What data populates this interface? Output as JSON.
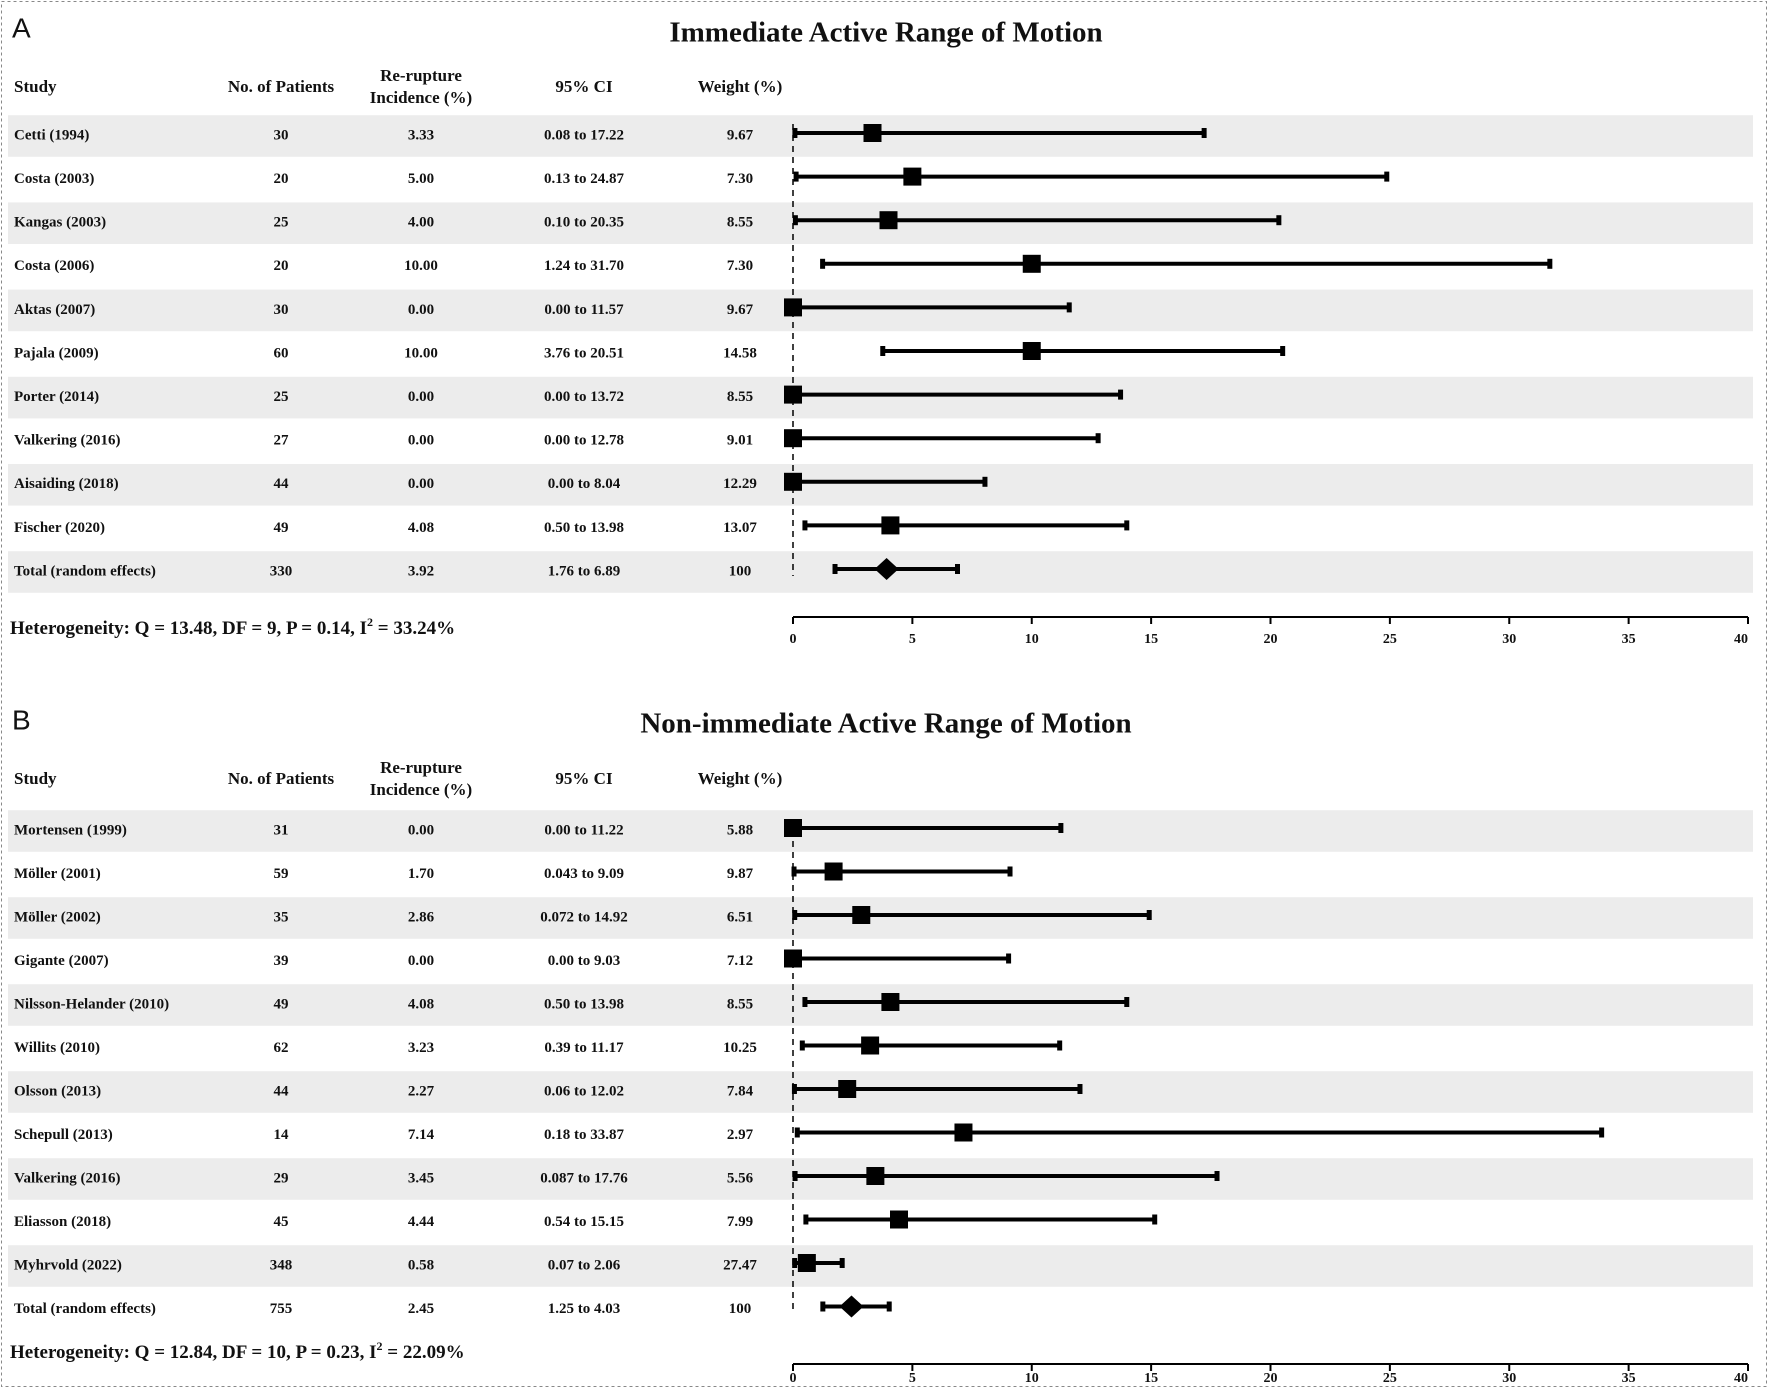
{
  "chart_data": [
    {
      "type": "forest",
      "panel": "A",
      "title": "Immediate Active Range of Motion",
      "columns": [
        "Study",
        "No. of Patients",
        [
          "Re-rupture",
          "Incidence (%)"
        ],
        "95% CI",
        "Weight (%)"
      ],
      "categories": [
        "Cetti (1994)",
        "Costa (2003)",
        "Kangas (2003)",
        "Costa (2006)",
        "Aktas (2007)",
        "Pajala (2009)",
        "Porter (2014)",
        "Valkering (2016)",
        "Aisaiding (2018)",
        "Fischer (2020)"
      ],
      "patients": [
        30,
        20,
        25,
        20,
        30,
        60,
        25,
        27,
        44,
        49
      ],
      "values": [
        3.33,
        5,
        4,
        10,
        0,
        10,
        0,
        0,
        0,
        4.08
      ],
      "value_labels": [
        "3.33",
        "5.00",
        "4.00",
        "10.00",
        "0.00",
        "10.00",
        "0.00",
        "0.00",
        "0.00",
        "4.08"
      ],
      "ci_low": [
        0.08,
        0.13,
        0.1,
        1.24,
        0,
        3.76,
        0,
        0,
        0,
        0.5
      ],
      "ci_high": [
        17.22,
        24.87,
        20.35,
        31.7,
        11.57,
        20.51,
        13.72,
        12.78,
        8.04,
        13.98
      ],
      "ci_labels": [
        "0.08 to 17.22",
        "0.13 to 24.87",
        "0.10 to 20.35",
        "1.24 to 31.70",
        "0.00 to 11.57",
        "3.76 to 20.51",
        "0.00 to 13.72",
        "0.00 to 12.78",
        "0.00 to 8.04",
        "0.50 to 13.98"
      ],
      "weights": [
        9.67,
        7.3,
        8.55,
        7.3,
        9.67,
        14.58,
        8.55,
        9.01,
        12.29,
        13.07
      ],
      "weight_labels": [
        "9.67",
        "7.30",
        "8.55",
        "7.30",
        "9.67",
        "14.58",
        "8.55",
        "9.01",
        "12.29",
        "13.07"
      ],
      "total": {
        "label": "Total (random effects)",
        "patients": 330,
        "value": 3.92,
        "ci_low": 1.76,
        "ci_high": 6.89,
        "ci_label": "1.76 to 6.89",
        "weight": 100
      },
      "heterogeneity": {
        "text": "Heterogeneity: Q = 13.48, DF = 9, P = 0.14, I",
        "superscript": "2",
        "suffix": " = 33.24%"
      },
      "xlim": [
        0,
        40
      ],
      "xticks": [
        0,
        5,
        10,
        15,
        20,
        25,
        30,
        35,
        40
      ],
      "reference_line": 0,
      "color": "#000000",
      "band_color": "#ececec"
    },
    {
      "type": "forest",
      "panel": "B",
      "title": "Non-immediate Active Range of Motion",
      "columns": [
        "Study",
        "No. of Patients",
        [
          "Re-rupture",
          "Incidence (%)"
        ],
        "95% CI",
        "Weight (%)"
      ],
      "categories": [
        "Mortensen (1999)",
        "Möller (2001)",
        "Möller (2002)",
        "Gigante (2007)",
        "Nilsson-Helander (2010)",
        "Willits (2010)",
        "Olsson (2013)",
        "Schepull (2013)",
        "Valkering (2016)",
        "Eliasson (2018)",
        "Myhrvold (2022)"
      ],
      "patients": [
        31,
        59,
        35,
        39,
        49,
        62,
        44,
        14,
        29,
        45,
        348
      ],
      "values": [
        0,
        1.7,
        2.86,
        0,
        4.08,
        3.23,
        2.27,
        7.14,
        3.45,
        4.44,
        0.58
      ],
      "value_labels": [
        "0.00",
        "1.70",
        "2.86",
        "0.00",
        "4.08",
        "3.23",
        "2.27",
        "7.14",
        "3.45",
        "4.44",
        "0.58"
      ],
      "ci_low": [
        0,
        0.043,
        0.072,
        0,
        0.5,
        0.39,
        0.06,
        0.18,
        0.087,
        0.54,
        0.07
      ],
      "ci_high": [
        11.22,
        9.09,
        14.92,
        9.03,
        13.98,
        11.17,
        12.02,
        33.87,
        17.76,
        15.15,
        2.06
      ],
      "ci_labels": [
        "0.00 to 11.22",
        "0.043 to 9.09",
        "0.072 to 14.92",
        "0.00 to 9.03",
        "0.50 to 13.98",
        "0.39 to 11.17",
        "0.06 to 12.02",
        "0.18 to 33.87",
        "0.087 to 17.76",
        "0.54 to 15.15",
        "0.07 to 2.06"
      ],
      "weights": [
        5.88,
        9.87,
        6.51,
        7.12,
        8.55,
        10.25,
        7.84,
        2.97,
        5.56,
        7.99,
        27.47
      ],
      "weight_labels": [
        "5.88",
        "9.87",
        "6.51",
        "7.12",
        "8.55",
        "10.25",
        "7.84",
        "2.97",
        "5.56",
        "7.99",
        "27.47"
      ],
      "total": {
        "label": "Total (random effects)",
        "patients": 755,
        "value": 2.45,
        "ci_low": 1.25,
        "ci_high": 4.03,
        "ci_label": "1.25 to 4.03",
        "weight": 100
      },
      "heterogeneity": {
        "text": "Heterogeneity: Q = 12.84, DF = 10, P = 0.23, I",
        "superscript": "2",
        "suffix": " = 22.09%"
      },
      "xlim": [
        0,
        40
      ],
      "xticks": [
        0,
        5,
        10,
        15,
        20,
        25,
        30,
        35,
        40
      ],
      "reference_line": 0,
      "color": "#000000",
      "band_color": "#ececec"
    }
  ]
}
